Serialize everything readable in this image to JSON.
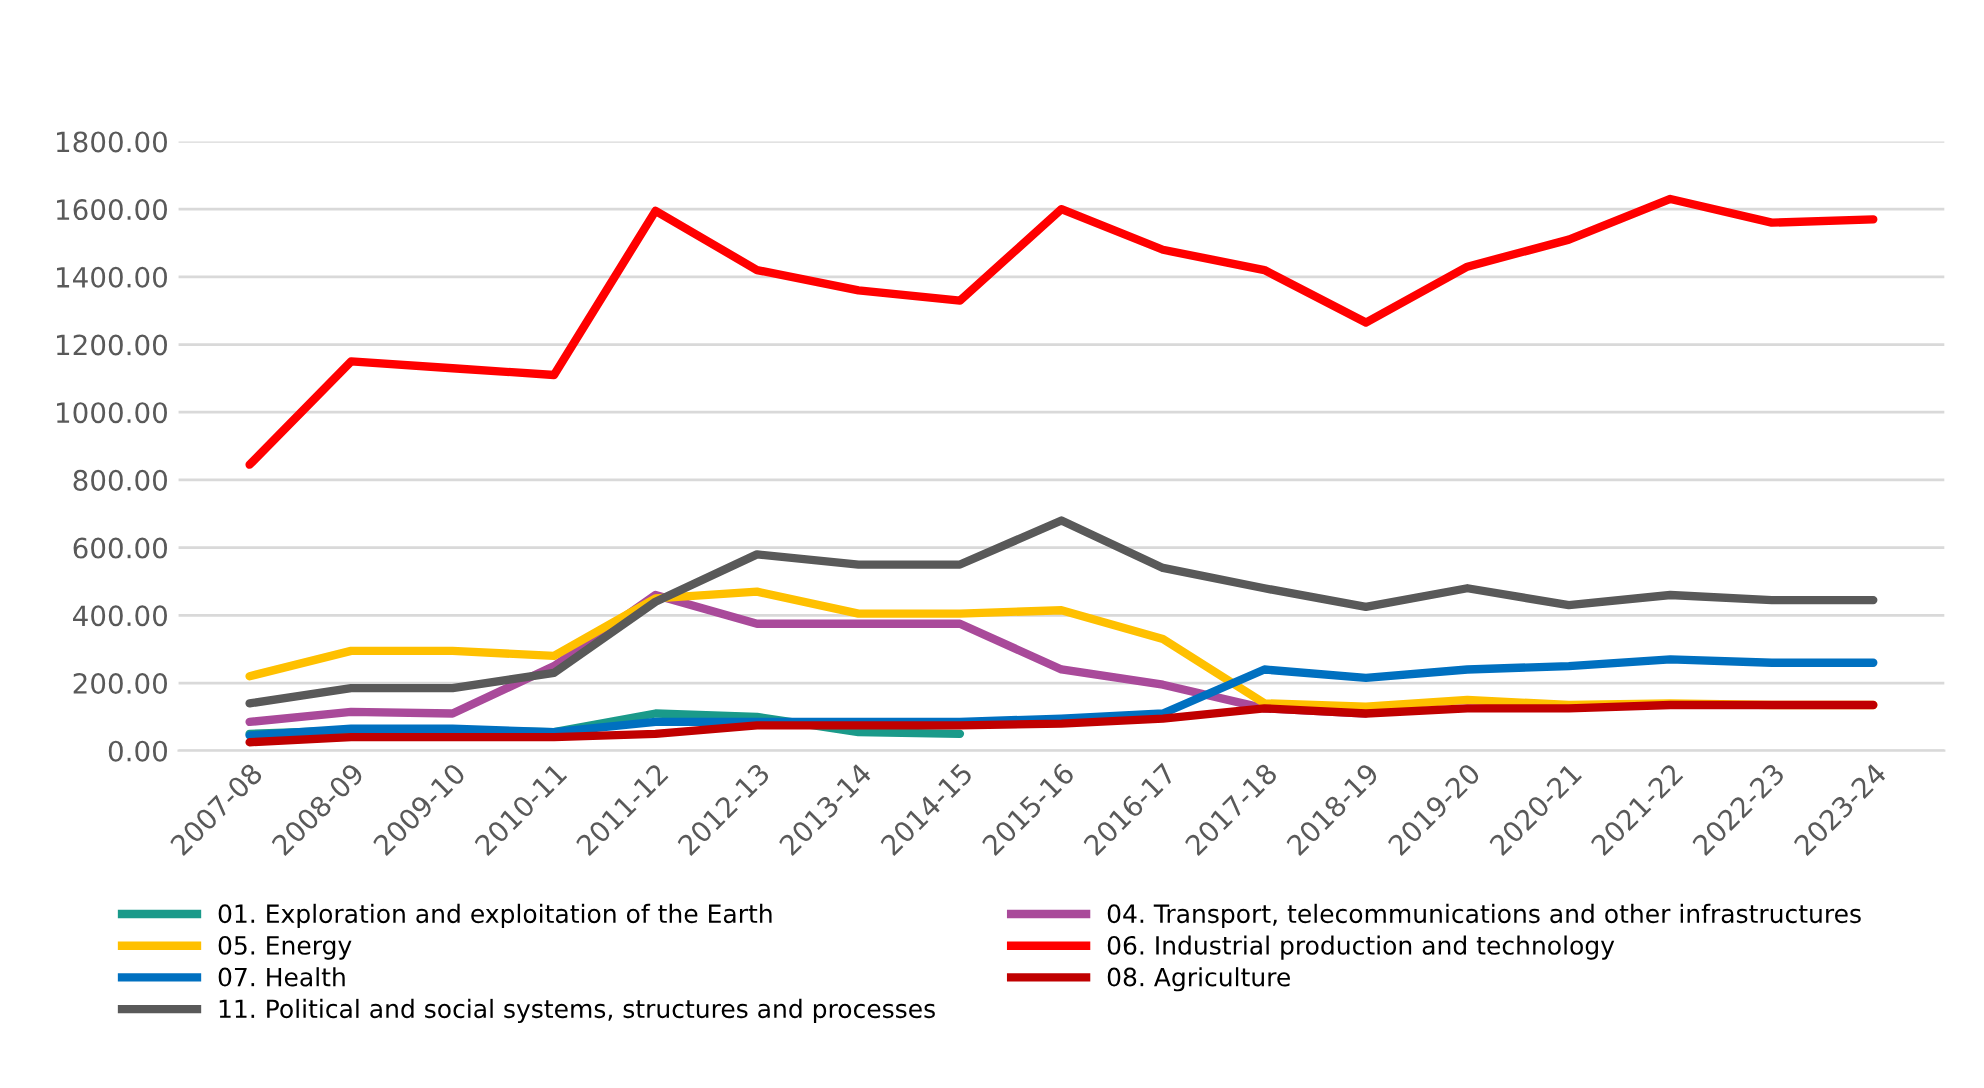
{
  "chart_data": {
    "type": "line",
    "categories": [
      "2007-08",
      "2008-09",
      "2009-10",
      "2010-11",
      "2011-12",
      "2012-13",
      "2013-14",
      "2014-15",
      "2015-16",
      "2016-17",
      "2017-18",
      "2018-19",
      "2019-20",
      "2020-21",
      "2021-22",
      "2022-23",
      "2023-24"
    ],
    "ylim": [
      0,
      1800
    ],
    "yticks": [
      {
        "value": 0,
        "label": "0.00"
      },
      {
        "value": 200,
        "label": "200.00"
      },
      {
        "value": 400,
        "label": "400.00"
      },
      {
        "value": 600,
        "label": "600.00"
      },
      {
        "value": 800,
        "label": "800.00"
      },
      {
        "value": 1000,
        "label": "1000.00"
      },
      {
        "value": 1200,
        "label": "1200.00"
      },
      {
        "value": 1400,
        "label": "1400.00"
      },
      {
        "value": 1600,
        "label": "1600.00"
      },
      {
        "value": 1800,
        "label": "1800.00"
      }
    ],
    "grid": "y",
    "legend": "bottom",
    "marker": "none",
    "line_style": "solid",
    "series": [
      {
        "name": "01. Exploration and exploitation of the Earth",
        "color": "#1a9a8a",
        "values": [
          50,
          60,
          60,
          55,
          110,
          100,
          55,
          50,
          null,
          null,
          null,
          null,
          null,
          null,
          null,
          null,
          null
        ]
      },
      {
        "name": "04. Transport, telecommunications and other infrastructures",
        "color": "#a94a9a",
        "values": [
          85,
          115,
          110,
          250,
          460,
          375,
          375,
          375,
          240,
          195,
          125,
          110,
          null,
          null,
          null,
          null,
          null
        ]
      },
      {
        "name": "05. Energy",
        "color": "#ffc000",
        "values": [
          220,
          295,
          295,
          280,
          450,
          470,
          405,
          405,
          415,
          330,
          140,
          130,
          150,
          135,
          140,
          135,
          135
        ]
      },
      {
        "name": "06. Industrial production and technology",
        "color": "#ff0000",
        "values": [
          845,
          1150,
          1130,
          1110,
          1595,
          1420,
          1360,
          1330,
          1600,
          1480,
          1420,
          1265,
          1430,
          1510,
          1630,
          1560,
          1570
        ]
      },
      {
        "name": "07. Health",
        "color": "#0070c0",
        "values": [
          45,
          65,
          65,
          55,
          85,
          85,
          85,
          85,
          95,
          110,
          240,
          215,
          240,
          250,
          270,
          260,
          260
        ]
      },
      {
        "name": "08. Agriculture",
        "color": "#c00000",
        "values": [
          25,
          40,
          40,
          40,
          50,
          75,
          75,
          75,
          80,
          95,
          125,
          110,
          125,
          125,
          135,
          135,
          135
        ]
      },
      {
        "name": "11. Political and social systems, structures and processes",
        "color": "#595959",
        "values": [
          140,
          185,
          185,
          230,
          440,
          580,
          550,
          550,
          680,
          540,
          480,
          425,
          480,
          430,
          460,
          445,
          445
        ]
      }
    ]
  }
}
